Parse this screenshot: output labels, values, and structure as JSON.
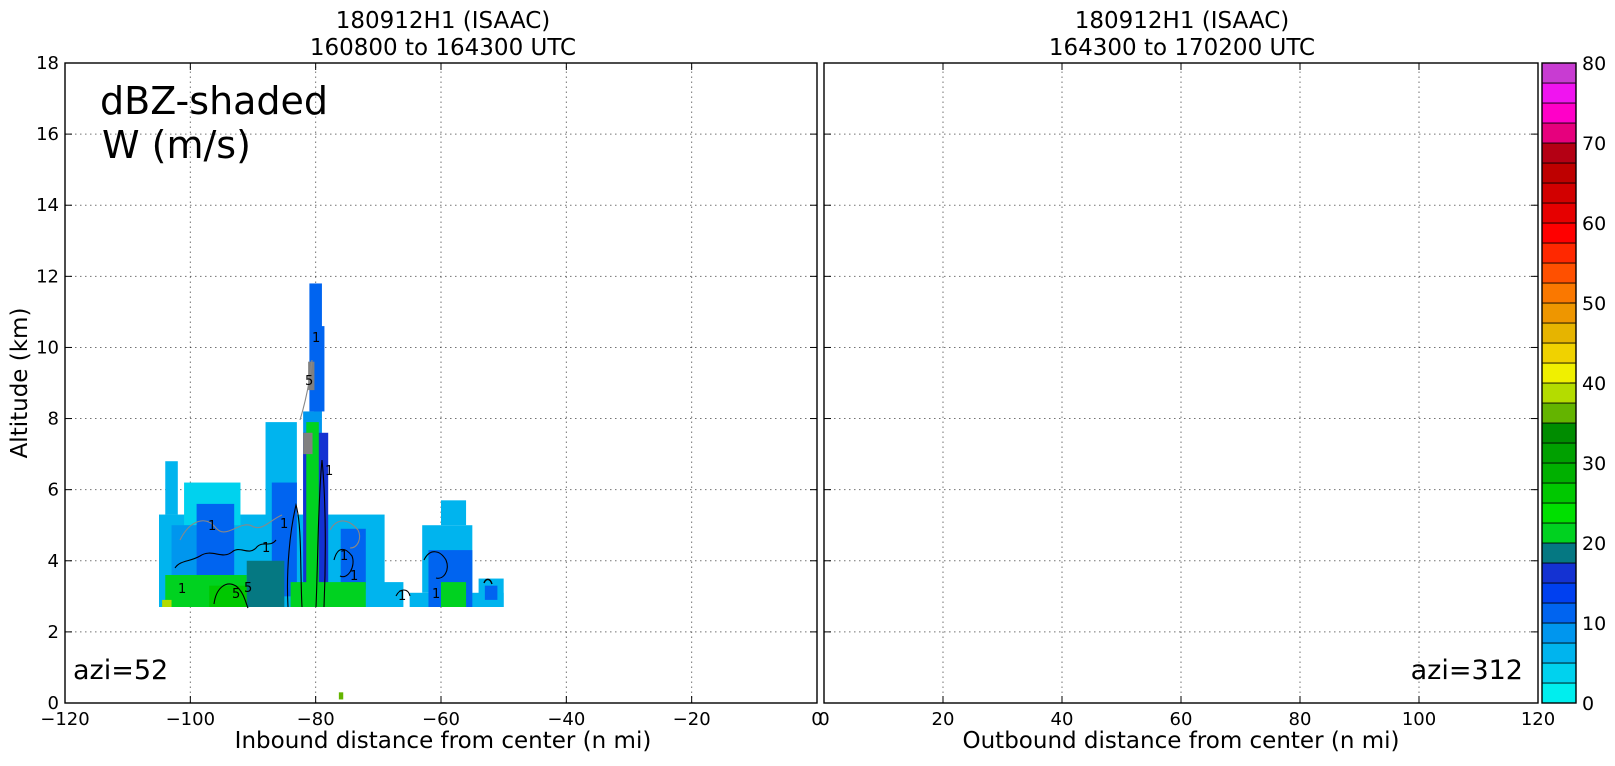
{
  "chart_data": [
    {
      "type": "heatmap",
      "title_line1": "180912H1 (ISAAC)",
      "title_line2": "160800 to 164300 UTC",
      "xlabel": "Inbound distance from center (n mi)",
      "ylabel": "Altitude (km)",
      "xlim": [
        -120,
        0
      ],
      "ylim": [
        0,
        18
      ],
      "xticks": [
        -120,
        -100,
        -80,
        -60,
        -40,
        -20,
        0
      ],
      "xtick_labels": [
        "−120",
        "−100",
        "−80",
        "−60",
        "−40",
        "−20",
        "0"
      ],
      "yticks": [
        0,
        2,
        4,
        6,
        8,
        10,
        12,
        14,
        16,
        18
      ],
      "ytick_labels": [
        "0",
        "2",
        "4",
        "6",
        "8",
        "10",
        "12",
        "14",
        "16",
        "18"
      ],
      "grid": true,
      "annotation_line1": "dBZ-shaded",
      "annotation_line2": "W (m/s)",
      "azimuth_label": "azi=52",
      "contour_labels": [
        "1",
        "1",
        "1",
        "1",
        "1",
        "1",
        "1",
        "1",
        "5",
        "5",
        "5",
        "1",
        "1"
      ],
      "dbz_cells": [
        {
          "x0": -105,
          "x1": -69,
          "y0": 2.7,
          "y1": 5.3,
          "dbz": 5
        },
        {
          "x0": -104,
          "x1": -102,
          "y0": 5.3,
          "y1": 6.8,
          "dbz": 6
        },
        {
          "x0": -101,
          "x1": -92,
          "y0": 5.0,
          "y1": 6.2,
          "dbz": 4
        },
        {
          "x0": -88,
          "x1": -83,
          "y0": 5.0,
          "y1": 7.9,
          "dbz": 6
        },
        {
          "x0": -82,
          "x1": -79,
          "y0": 5.3,
          "y1": 8.2,
          "dbz": 8
        },
        {
          "x0": -81,
          "x1": -79,
          "y0": 8.2,
          "y1": 11.8,
          "dbz": 10
        },
        {
          "x0": -80.3,
          "x1": -78.6,
          "y0": 8.2,
          "y1": 10.6,
          "dbz": 12
        },
        {
          "x0": -103,
          "x1": -96,
          "y0": 3.2,
          "y1": 5.0,
          "dbz": 9
        },
        {
          "x0": -99,
          "x1": -93,
          "y0": 3.5,
          "y1": 5.6,
          "dbz": 11
        },
        {
          "x0": -87,
          "x1": -83,
          "y0": 3.0,
          "y1": 6.2,
          "dbz": 12
        },
        {
          "x0": -82,
          "x1": -78,
          "y0": 3.0,
          "y1": 7.6,
          "dbz": 16
        },
        {
          "x0": -81.5,
          "x1": -79.5,
          "y0": 3.0,
          "y1": 7.9,
          "dbz": 22
        },
        {
          "x0": -76,
          "x1": -72,
          "y0": 3.2,
          "y1": 4.9,
          "dbz": 11
        },
        {
          "x0": -104,
          "x1": -91,
          "y0": 2.7,
          "y1": 3.6,
          "dbz": 20
        },
        {
          "x0": -97,
          "x1": -88,
          "y0": 2.7,
          "y1": 3.3,
          "dbz": 25
        },
        {
          "x0": -91,
          "x1": -85,
          "y0": 2.7,
          "y1": 4.0,
          "dbz": 18
        },
        {
          "x0": -84,
          "x1": -72,
          "y0": 2.7,
          "y1": 3.4,
          "dbz": 20
        },
        {
          "x0": -104.5,
          "x1": -103,
          "y0": 2.7,
          "y1": 2.9,
          "dbz": 38
        },
        {
          "x0": -82,
          "x1": -80.5,
          "y0": 7.0,
          "y1": 7.6,
          "dbz": 0
        },
        {
          "x0": -81.2,
          "x1": -80.2,
          "y0": 8.8,
          "y1": 9.6,
          "dbz": 0
        },
        {
          "x0": -65,
          "x1": -50,
          "y0": 2.7,
          "y1": 3.1,
          "dbz": 5
        },
        {
          "x0": -63,
          "x1": -55,
          "y0": 3.1,
          "y1": 5.0,
          "dbz": 5
        },
        {
          "x0": -60,
          "x1": -56,
          "y0": 5.0,
          "y1": 5.7,
          "dbz": 6
        },
        {
          "x0": -62,
          "x1": -55,
          "y0": 2.7,
          "y1": 4.3,
          "dbz": 10
        },
        {
          "x0": -60,
          "x1": -56,
          "y0": 2.7,
          "y1": 3.4,
          "dbz": 22
        },
        {
          "x0": -69.5,
          "x1": -66,
          "y0": 2.7,
          "y1": 3.4,
          "dbz": 5
        },
        {
          "x0": -54,
          "x1": -50,
          "y0": 2.7,
          "y1": 3.5,
          "dbz": 6
        },
        {
          "x0": -53,
          "x1": -51,
          "y0": 2.9,
          "y1": 3.3,
          "dbz": 10
        },
        {
          "x0": -76.3,
          "x1": -75.6,
          "y0": 0.1,
          "y1": 0.3,
          "dbz": 37
        }
      ]
    },
    {
      "type": "heatmap",
      "title_line1": "180912H1 (ISAAC)",
      "title_line2": "164300 to 170200 UTC",
      "xlabel": "Outbound distance from center (n mi)",
      "ylabel": "",
      "xlim": [
        0,
        120
      ],
      "ylim": [
        0,
        18
      ],
      "xticks": [
        0,
        20,
        40,
        60,
        80,
        100,
        120
      ],
      "xtick_labels": [
        "0",
        "20",
        "40",
        "60",
        "80",
        "100",
        "120"
      ],
      "grid": true,
      "azimuth_label": "azi=312",
      "dbz_cells": []
    }
  ],
  "colorbar": {
    "min": 0,
    "max": 80,
    "step": 2.5,
    "tick_values": [
      0,
      10,
      20,
      30,
      40,
      50,
      60,
      70,
      80
    ],
    "tick_labels": [
      "0",
      "10",
      "20",
      "30",
      "40",
      "50",
      "60",
      "70",
      "80"
    ],
    "colors": [
      "#00eeee",
      "#00d2ee",
      "#00b4ee",
      "#0096ee",
      "#0064f0",
      "#0040f0",
      "#1432d2",
      "#057882",
      "#00d220",
      "#00e000",
      "#00c800",
      "#00b000",
      "#00a000",
      "#008c00",
      "#64b400",
      "#b4dc00",
      "#f0f000",
      "#f0d200",
      "#e6b400",
      "#ee9600",
      "#fa7800",
      "#ff5000",
      "#ff2800",
      "#ff0000",
      "#e60000",
      "#d20000",
      "#be0000",
      "#b40014",
      "#e6007d",
      "#ff00c8",
      "#f014f0",
      "#c83cd2",
      "#a050c8",
      "#7850a0",
      "#463264",
      "#000000"
    ]
  }
}
